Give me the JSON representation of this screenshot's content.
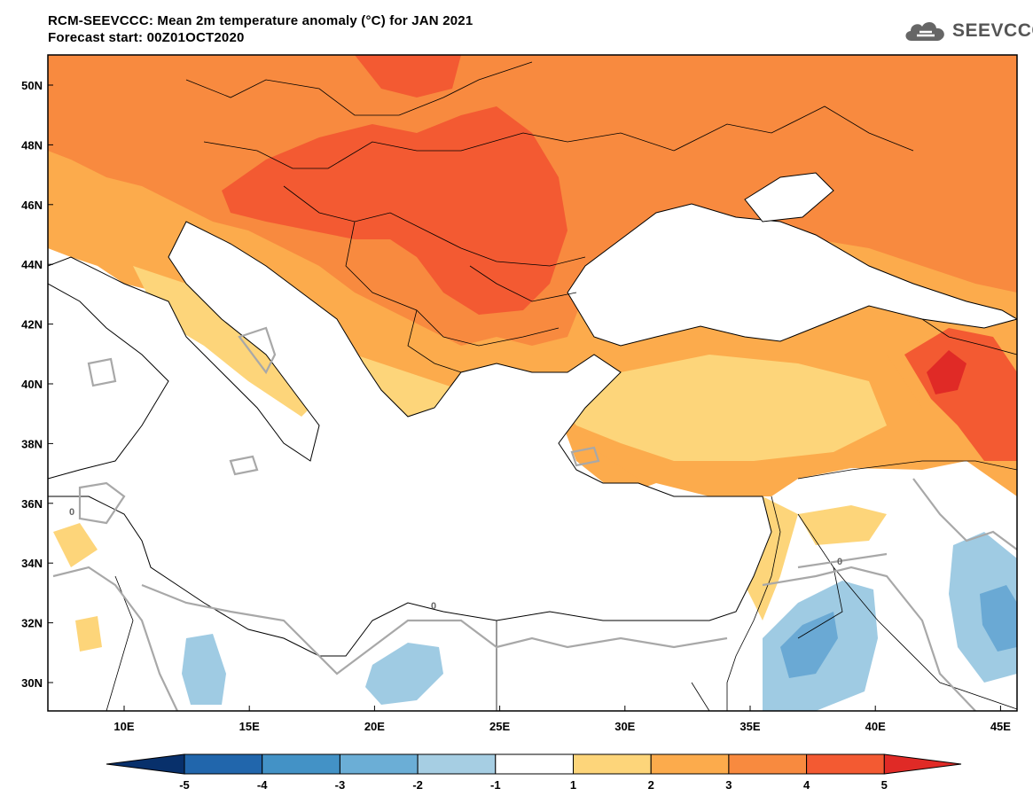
{
  "header": {
    "title": "RCM-SEEVCCC: Mean 2m temperature anomaly (°C) for JAN 2021",
    "subtitle": "Forecast start: 00Z01OCT2020"
  },
  "logo": {
    "text": "SEEVCCC",
    "icon": "cloud-icon"
  },
  "map": {
    "lat_labels": [
      "50N",
      "48N",
      "46N",
      "44N",
      "42N",
      "40N",
      "38N",
      "36N",
      "34N",
      "32N",
      "30N"
    ],
    "lon_labels": [
      "10E",
      "15E",
      "20E",
      "25E",
      "30E",
      "35E",
      "40E",
      "45E"
    ],
    "contour_label": "0",
    "colors": {
      "land_neutral": "#ffffff",
      "sea": "#ffffff",
      "anom_1_2": "#fdd57a",
      "anom_2_3": "#fcab4c",
      "anom_3_4": "#f88a3f",
      "anom_4_5": "#f35a32",
      "anom_gt5": "#e02a26",
      "anom_m1_m2": "#9fcbe3",
      "anom_m2_m3": "#6aa9d4"
    }
  },
  "colorbar": {
    "labels": [
      "-5",
      "-4",
      "-3",
      "-2",
      "-1",
      "1",
      "2",
      "3",
      "4",
      "5"
    ],
    "colors": [
      "#08306b",
      "#2166ac",
      "#4392c6",
      "#6baed6",
      "#a6cee3",
      "#ffffff",
      "#fdd57a",
      "#fcab4c",
      "#f88a3f",
      "#f35a32",
      "#e02a26"
    ]
  }
}
